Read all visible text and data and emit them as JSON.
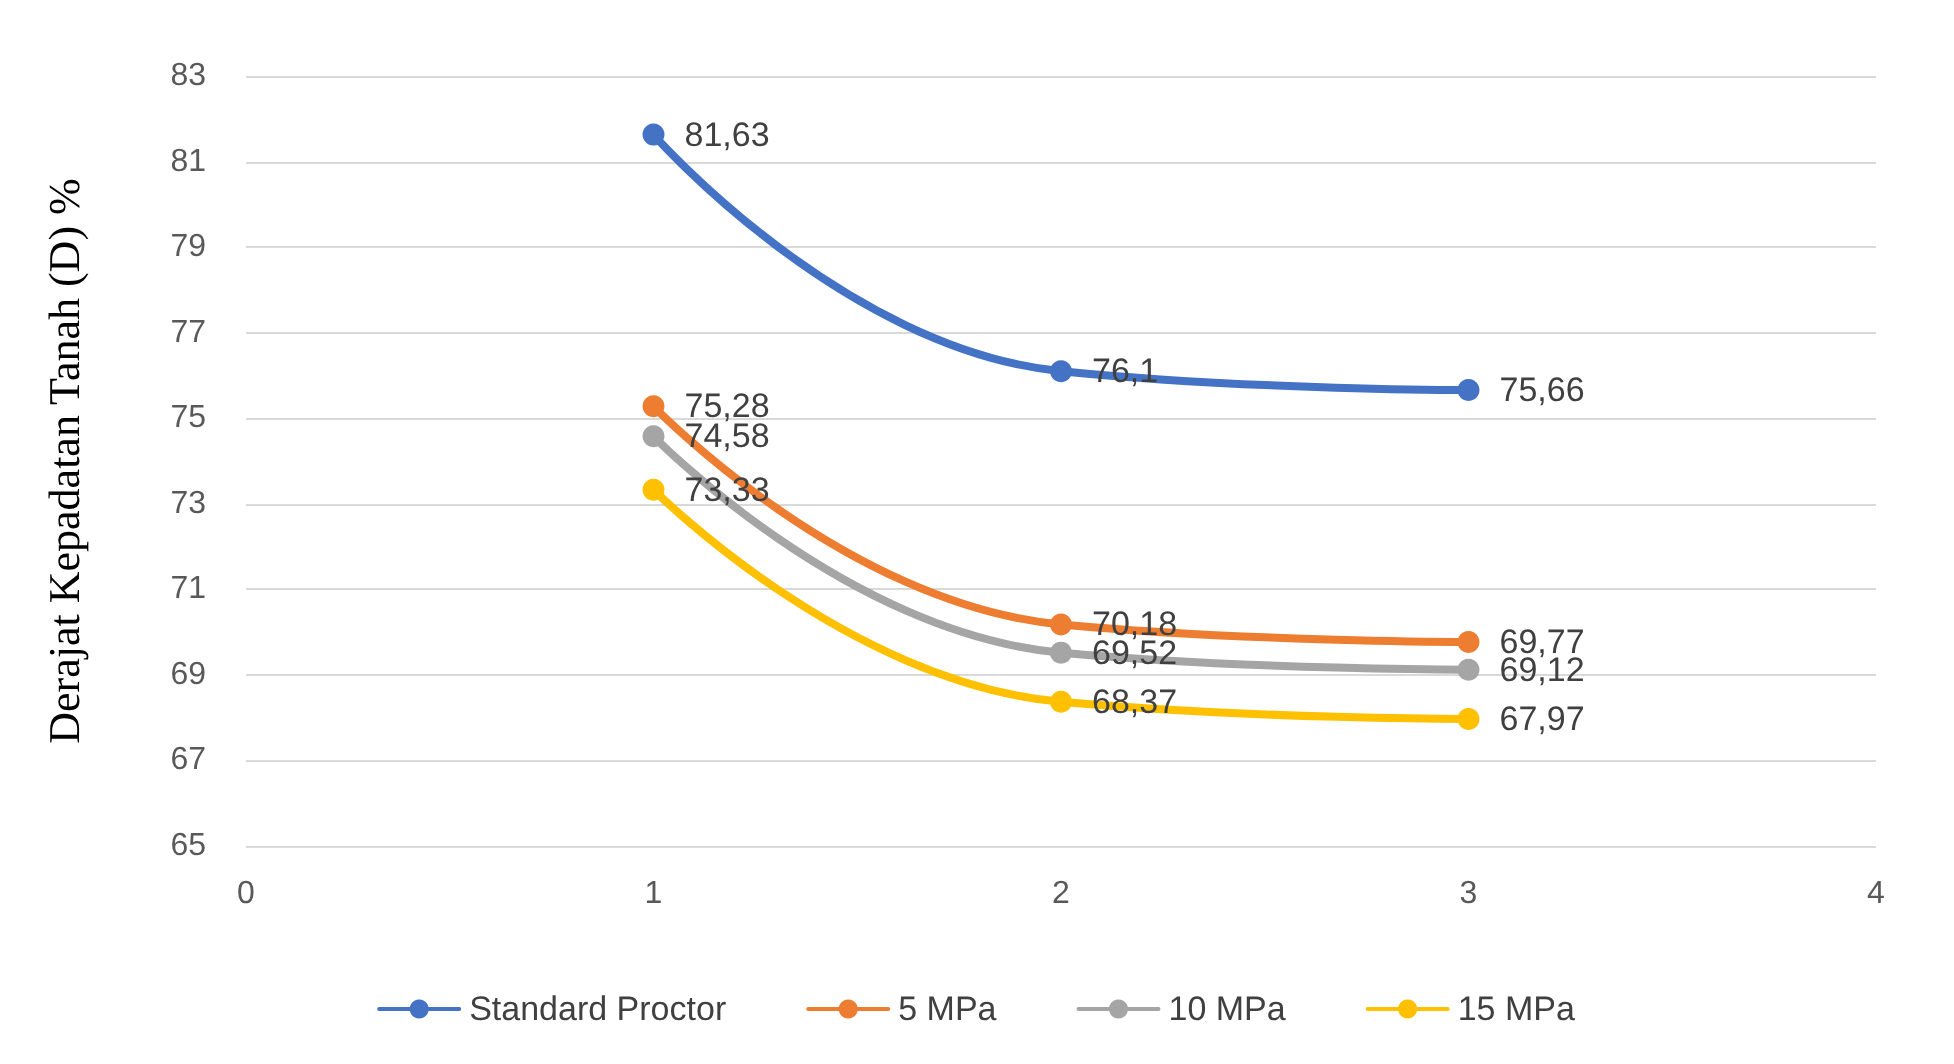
{
  "chart_data": {
    "type": "line",
    "ylabel": "Derajat Kepadatan Tanah (D) %",
    "x": [
      1,
      2,
      3
    ],
    "xlim": [
      0,
      4
    ],
    "xticks": [
      0,
      1,
      2,
      3,
      4
    ],
    "ylim": [
      65,
      83
    ],
    "yticks": [
      65,
      67,
      69,
      71,
      73,
      75,
      77,
      79,
      81,
      83
    ],
    "grid": "y",
    "legend": "bottom",
    "marker": "circle",
    "line_style": "solid",
    "series": [
      {
        "name": "Standard Proctor",
        "color": "#4472c4",
        "values": [
          81.63,
          76.1,
          75.66
        ],
        "value_labels": [
          "81,63",
          "76,1",
          "75,66"
        ]
      },
      {
        "name": "5 MPa",
        "color": "#ed7d31",
        "values": [
          75.28,
          70.18,
          69.77
        ],
        "value_labels": [
          "75,28",
          "70,18",
          "69,77"
        ]
      },
      {
        "name": "10 MPa",
        "color": "#a5a5a5",
        "values": [
          74.58,
          69.52,
          69.12
        ],
        "value_labels": [
          "74,58",
          "69,52",
          "69,12"
        ]
      },
      {
        "name": "15 MPa",
        "color": "#ffc000",
        "values": [
          73.33,
          68.37,
          67.97
        ],
        "value_labels": [
          "73,33",
          "68,37",
          "67,97"
        ]
      }
    ]
  }
}
